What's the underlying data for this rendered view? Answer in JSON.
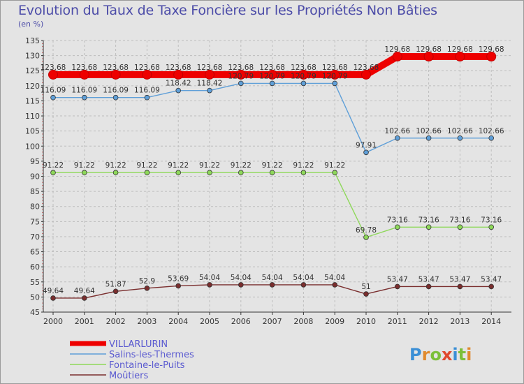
{
  "chart_data": {
    "type": "line",
    "title": "Evolution du Taux de Taxe Foncière sur les Propriétés Non Bâties",
    "ylabel": "(en %)",
    "xlabel": "",
    "ylim": [
      45,
      135
    ],
    "yticks": [
      45,
      50,
      55,
      60,
      65,
      70,
      75,
      80,
      85,
      90,
      95,
      100,
      105,
      110,
      115,
      120,
      125,
      130,
      135
    ],
    "grid": true,
    "categories": [
      "2000",
      "2001",
      "2002",
      "2003",
      "2004",
      "2005",
      "2006",
      "2007",
      "2008",
      "2009",
      "2010",
      "2011",
      "2012",
      "2013",
      "2014"
    ],
    "series": [
      {
        "name": "Salins-les-Thermes",
        "color": "#5f9fd8",
        "values": [
          116.09,
          116.09,
          116.09,
          116.09,
          118.42,
          118.42,
          120.79,
          120.79,
          120.79,
          120.79,
          97.91,
          102.66,
          102.66,
          102.66,
          102.66
        ],
        "labels": [
          "116.09",
          "116.09",
          "116.09",
          "116.09",
          "118.42",
          "118.42",
          "120.79",
          "120.79",
          "120.79",
          "120.79",
          "97.91",
          "102.66",
          "102.66",
          "102.66",
          "102.66"
        ]
      },
      {
        "name": "Fontaine-le-Puits",
        "color": "#8ed85a",
        "values": [
          91.22,
          91.22,
          91.22,
          91.22,
          91.22,
          91.22,
          91.22,
          91.22,
          91.22,
          91.22,
          69.78,
          73.16,
          73.16,
          73.16,
          73.16
        ],
        "labels": [
          "91.22",
          "91.22",
          "91.22",
          "91.22",
          "91.22",
          "91.22",
          "91.22",
          "91.22",
          "91.22",
          "91.22",
          "69.78",
          "73.16",
          "73.16",
          "73.16",
          "73.16"
        ]
      },
      {
        "name": "Moûtiers",
        "color": "#7a2e2e",
        "values": [
          49.64,
          49.64,
          51.87,
          52.9,
          53.69,
          54.04,
          54.04,
          54.04,
          54.04,
          54.04,
          51,
          53.47,
          53.47,
          53.47,
          53.47
        ],
        "labels": [
          "49.64",
          "49.64",
          "51.87",
          "52.9",
          "53.69",
          "54.04",
          "54.04",
          "54.04",
          "54.04",
          "54.04",
          "51",
          "53.47",
          "53.47",
          "53.47",
          "53.47"
        ]
      },
      {
        "name": "VILLARLURIN",
        "color": "#ee0000",
        "values": [
          123.68,
          123.68,
          123.68,
          123.68,
          123.68,
          123.68,
          123.68,
          123.68,
          123.68,
          123.68,
          123.68,
          129.68,
          129.68,
          129.68,
          129.68
        ],
        "labels": [
          "123.68",
          "123.68",
          "123.68",
          "123.68",
          "123.68",
          "123.68",
          "123.68",
          "123.68",
          "123.68",
          "123.68",
          "123.68",
          "129.68",
          "129.68",
          "129.68",
          "129.68"
        ]
      }
    ],
    "legend": [
      "VILLARLURIN",
      "Salins-les-Thermes",
      "Fontaine-le-Puits",
      "Moûtiers"
    ]
  },
  "brand": {
    "text": "Proxiti"
  }
}
